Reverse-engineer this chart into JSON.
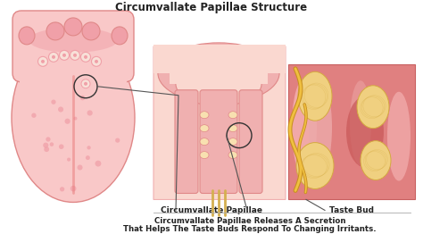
{
  "title": "Circumvallate Papillae Structure",
  "label1": "Circumvallate Papillae",
  "label2": "Taste Bud",
  "footnote_line1": "Circumvallate Papillae Releases A Secretion",
  "footnote_line2": "That Helps The Taste Buds Respond To Changing Irritants.",
  "bg_color": "#ffffff",
  "tongue_light": "#f9c8c8",
  "tongue_mid": "#f0a0a8",
  "tongue_dark": "#e87878",
  "tongue_edge": "#e08888",
  "cp_bg_light": "#fad8d0",
  "cp_bg_mid": "#f0b0b0",
  "cp_dark": "#e08888",
  "tb_bg_dark": "#c86060",
  "tb_bg_mid": "#e08080",
  "tb_pink_light": "#f5b0b0",
  "tb_yellow": "#f0d080",
  "tb_yellow_dark": "#d4aa40",
  "title_fontsize": 8.5,
  "label_fontsize": 6.5,
  "footnote_fontsize": 6.2
}
